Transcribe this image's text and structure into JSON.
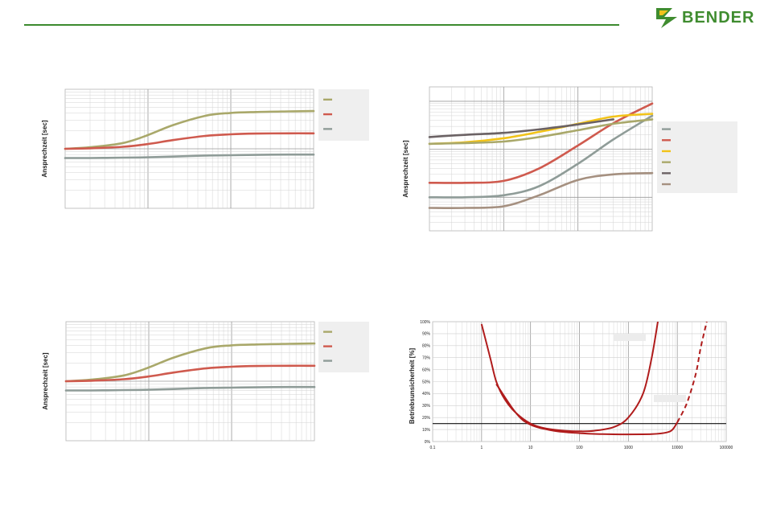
{
  "header": {
    "brand": "BENDER",
    "brand_color": "#3f8c2f",
    "line_color": "#3c8a2e"
  },
  "chart_data": [
    {
      "type": "line",
      "ylabel": "Ansprechzeit [sec]",
      "xscale": "log",
      "xlim": [
        1,
        1000
      ],
      "yscale": "log",
      "grid": true,
      "legend_position": "right",
      "series": [
        {
          "color": "#a9a86a",
          "x": [
            1,
            2,
            5,
            10,
            20,
            50,
            100,
            200,
            500,
            1000
          ],
          "values": [
            1.0,
            1.06,
            1.25,
            1.7,
            2.5,
            3.6,
            4.0,
            4.15,
            4.25,
            4.3
          ]
        },
        {
          "color": "#cf5a4e",
          "x": [
            1,
            2,
            5,
            10,
            20,
            50,
            100,
            200,
            500,
            1000
          ],
          "values": [
            1.0,
            1.02,
            1.08,
            1.2,
            1.4,
            1.65,
            1.75,
            1.8,
            1.82,
            1.82
          ]
        },
        {
          "color": "#8f9c98",
          "x": [
            1,
            2,
            5,
            10,
            20,
            50,
            100,
            200,
            500,
            1000
          ],
          "values": [
            0.7,
            0.7,
            0.71,
            0.72,
            0.74,
            0.77,
            0.78,
            0.79,
            0.8,
            0.8
          ]
        }
      ]
    },
    {
      "type": "line",
      "ylabel": "Ansprechzeit [sec]",
      "xscale": "log",
      "xlim": [
        1,
        1000
      ],
      "yscale": "log",
      "grid": true,
      "legend_position": "right",
      "series": [
        {
          "color": "#8f9c98",
          "x": [
            1,
            3,
            10,
            30,
            100,
            300,
            1000
          ],
          "values": [
            0.1,
            0.1,
            0.11,
            0.17,
            0.5,
            1.6,
            5.0
          ]
        },
        {
          "color": "#cf5a4e",
          "x": [
            1,
            3,
            10,
            30,
            100,
            300,
            1000
          ],
          "values": [
            0.2,
            0.2,
            0.22,
            0.4,
            1.2,
            3.5,
            9.0
          ]
        },
        {
          "color": "#f2c318",
          "x": [
            1,
            3,
            10,
            30,
            100,
            300,
            1000
          ],
          "values": [
            1.3,
            1.4,
            1.7,
            2.3,
            3.4,
            4.8,
            5.5
          ]
        },
        {
          "color": "#a9a86a",
          "x": [
            1,
            3,
            10,
            30,
            100,
            300,
            1000
          ],
          "values": [
            1.3,
            1.35,
            1.45,
            1.8,
            2.5,
            3.4,
            4.2
          ]
        },
        {
          "color": "#6b6264",
          "x": [
            1,
            3,
            10,
            30,
            100,
            300
          ],
          "values": [
            1.8,
            2.0,
            2.2,
            2.6,
            3.3,
            4.2
          ]
        },
        {
          "color": "#a59080",
          "x": [
            1,
            3,
            10,
            30,
            100,
            300,
            1000
          ],
          "values": [
            0.06,
            0.06,
            0.065,
            0.11,
            0.23,
            0.3,
            0.32
          ]
        }
      ]
    },
    {
      "type": "line",
      "ylabel": "Ansprechzeit [sec]",
      "xscale": "log",
      "xlim": [
        1,
        1000
      ],
      "yscale": "log",
      "grid": true,
      "legend_position": "right",
      "series": [
        {
          "color": "#a9a86a",
          "x": [
            1,
            2,
            5,
            10,
            20,
            50,
            100,
            200,
            500,
            1000
          ],
          "values": [
            1.0,
            1.06,
            1.25,
            1.7,
            2.5,
            3.6,
            4.0,
            4.15,
            4.25,
            4.3
          ]
        },
        {
          "color": "#cf5a4e",
          "x": [
            1,
            2,
            5,
            10,
            20,
            50,
            100,
            200,
            500,
            1000
          ],
          "values": [
            1.0,
            1.02,
            1.08,
            1.2,
            1.4,
            1.65,
            1.75,
            1.8,
            1.82,
            1.82
          ]
        },
        {
          "color": "#8f9c98",
          "x": [
            1,
            2,
            5,
            10,
            20,
            50,
            100,
            200,
            500,
            1000
          ],
          "values": [
            0.7,
            0.7,
            0.71,
            0.72,
            0.74,
            0.77,
            0.78,
            0.79,
            0.8,
            0.8
          ]
        }
      ]
    },
    {
      "type": "line",
      "ylabel": "Betriebsunsicherheit [%]",
      "xscale": "log",
      "xlim": [
        0.1,
        100000
      ],
      "ylim": [
        0,
        100
      ],
      "xticks": [
        "0.1",
        "1",
        "10",
        "100",
        "1000",
        "10000",
        "100000"
      ],
      "yticks": [
        "0%",
        "10%",
        "20%",
        "30%",
        "40%",
        "50%",
        "60%",
        "70%",
        "80%",
        "90%",
        "100%"
      ],
      "grid": true,
      "reference_line_y": 15,
      "series": [
        {
          "color": "#b01c1c",
          "style": "solid",
          "x": [
            1,
            1.5,
            2,
            3,
            5,
            10,
            20,
            50,
            100,
            200,
            500,
            1000,
            2000,
            3000,
            4000
          ],
          "values": [
            98,
            70,
            50,
            35,
            24,
            15,
            11,
            9,
            8.5,
            9,
            12,
            20,
            40,
            70,
            100
          ]
        },
        {
          "color": "#b01c1c",
          "style": "solid",
          "x": [
            2,
            5,
            10,
            30,
            100,
            300,
            1000,
            3000,
            6000,
            8000,
            10000
          ],
          "values": [
            48,
            24,
            14,
            9,
            7,
            6.2,
            6,
            6.2,
            7.5,
            10,
            16
          ]
        },
        {
          "color": "#b01c1c",
          "style": "dashed",
          "x": [
            10000,
            15000,
            20000,
            25000,
            30000,
            40000
          ],
          "values": [
            16,
            30,
            45,
            60,
            78,
            100
          ]
        }
      ]
    }
  ]
}
